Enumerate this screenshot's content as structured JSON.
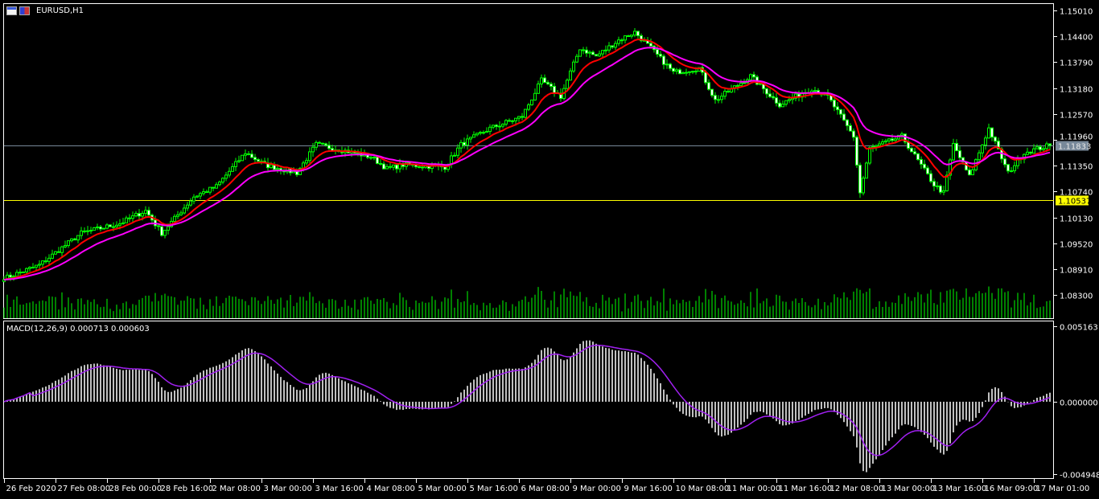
{
  "window": {
    "symbol_label": "EURUSD,H1",
    "icons": [
      "chart-window-icon",
      "symbol-flag-icon"
    ]
  },
  "indicator": {
    "label": "MACD(12,26,9) 0.000713 0.000603"
  },
  "colors": {
    "background": "#000000",
    "axis": "#ffffff",
    "candle": "#00ff00",
    "bear_body": "#ffffff",
    "volume": "#00ff00",
    "ma_fast": "#ff0000",
    "ma_slow": "#ff00ff",
    "macd_hist": "#c0c0c0",
    "macd_signal": "#a020f0",
    "bid_line": "#778899",
    "level_line": "#ffff00"
  },
  "chart_data": [
    {
      "type": "candlestick",
      "symbol": "EURUSD",
      "timeframe": "H1",
      "price_ticks": [
        "1.15010",
        "1.14400",
        "1.13790",
        "1.13180",
        "1.12570",
        "1.11960",
        "1.11350",
        "1.10740",
        "1.10130",
        "1.09520",
        "1.08910",
        "1.08300"
      ],
      "ylim": [
        1.08,
        1.152
      ],
      "time_ticks": [
        "26 Feb 2020",
        "27 Feb 08:00",
        "28 Feb 00:00",
        "28 Feb 16:00",
        "2 Mar 08:00",
        "3 Mar 00:00",
        "3 Mar 16:00",
        "4 Mar 08:00",
        "5 Mar 00:00",
        "5 Mar 16:00",
        "6 Mar 08:00",
        "9 Mar 00:00",
        "9 Mar 16:00",
        "10 Mar 08:00",
        "11 Mar 00:00",
        "11 Mar 16:00",
        "12 Mar 08:00",
        "13 Mar 00:00",
        "13 Mar 16:00",
        "16 Mar 09:00",
        "17 Mar 01:00"
      ],
      "bid_price": "1.11833",
      "level_price": "1.10537",
      "close_path": [
        [
          "2020-02-26T17",
          1.0872
        ],
        [
          "2020-02-27T03",
          1.0901
        ],
        [
          "2020-02-27T16",
          1.0976
        ],
        [
          "2020-02-28T04",
          1.0999
        ],
        [
          "2020-02-28T12",
          1.1029
        ],
        [
          "2020-02-28T17",
          1.0976
        ],
        [
          "2020-03-02T03",
          1.1062
        ],
        [
          "2020-03-02T10",
          1.1086
        ],
        [
          "2020-03-02T19",
          1.1166
        ],
        [
          "2020-03-03T01",
          1.1137
        ],
        [
          "2020-03-03T11",
          1.1118
        ],
        [
          "2020-03-03T17",
          1.1185
        ],
        [
          "2020-03-04T02",
          1.117
        ],
        [
          "2020-03-04T10",
          1.1156
        ],
        [
          "2020-03-04T15",
          1.1128
        ],
        [
          "2020-03-04T20",
          1.1137
        ],
        [
          "2020-03-05T09",
          1.1132
        ],
        [
          "2020-03-05T14",
          1.1185
        ],
        [
          "2020-03-05T23",
          1.1223
        ],
        [
          "2020-03-06T09",
          1.1251
        ],
        [
          "2020-03-06T15",
          1.1336
        ],
        [
          "2020-03-06T21",
          1.1298
        ],
        [
          "2020-03-09T03",
          1.1412
        ],
        [
          "2020-03-09T08",
          1.1393
        ],
        [
          "2020-03-09T15",
          1.1431
        ],
        [
          "2020-03-09T20",
          1.145
        ],
        [
          "2020-03-10T01",
          1.1412
        ],
        [
          "2020-03-10T08",
          1.1355
        ],
        [
          "2020-03-10T16",
          1.1365
        ],
        [
          "2020-03-10T21",
          1.1289
        ],
        [
          "2020-03-11T08",
          1.1346
        ],
        [
          "2020-03-11T17",
          1.1279
        ],
        [
          "2020-03-12T03",
          1.1317
        ],
        [
          "2020-03-12T08",
          1.1298
        ],
        [
          "2020-03-12T16",
          1.1204
        ],
        [
          "2020-03-12T18",
          1.1071
        ],
        [
          "2020-03-12T21",
          1.1175
        ],
        [
          "2020-03-13T07",
          1.1204
        ],
        [
          "2020-03-13T17",
          1.109
        ],
        [
          "2020-03-13T20",
          1.1071
        ],
        [
          "2020-03-13T23",
          1.1185
        ],
        [
          "2020-03-16T04",
          1.1109
        ],
        [
          "2020-03-16T10",
          1.1223
        ],
        [
          "2020-03-16T16",
          1.1118
        ],
        [
          "2020-03-16T21",
          1.1166
        ],
        [
          "2020-03-17T05",
          1.11833
        ]
      ]
    },
    {
      "type": "bar",
      "name": "MACD(12,26,9)",
      "value_ticks": [
        "0.005163",
        "0.000000",
        "-0.004948"
      ],
      "ylim": [
        -0.004948,
        0.005163
      ],
      "last_values": {
        "macd": 0.000713,
        "signal": 0.000603
      }
    }
  ]
}
